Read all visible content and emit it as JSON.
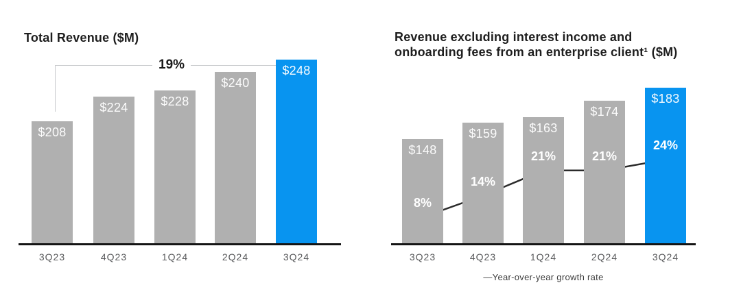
{
  "chart_data": [
    {
      "type": "bar",
      "title": "Total Revenue ($M)",
      "categories": [
        "3Q23",
        "4Q23",
        "1Q24",
        "2Q24",
        "3Q24"
      ],
      "values": [
        208,
        224,
        228,
        240,
        248
      ],
      "data_labels": [
        "$208",
        "$224",
        "$228",
        "$240",
        "$248"
      ],
      "highlight_index": 4,
      "xlabel": "",
      "ylabel": "",
      "ylim": [
        129,
        248
      ],
      "grid": false,
      "legend_position": "none",
      "annotation": {
        "label": "19%",
        "from": "3Q23",
        "to": "3Q24"
      }
    },
    {
      "type": "bar",
      "title": "Revenue excluding interest income and onboarding fees from an enterprise client¹ ($M)",
      "title_lines": [
        "Revenue excluding interest income and",
        "onboarding fees from an enterprise client¹ ($M)"
      ],
      "categories": [
        "3Q23",
        "4Q23",
        "1Q24",
        "2Q24",
        "3Q24"
      ],
      "series": [
        {
          "name": "Revenue",
          "type": "bar",
          "values": [
            148,
            159,
            163,
            174,
            183
          ],
          "data_labels": [
            "$148",
            "$159",
            "$163",
            "$174",
            "$183"
          ],
          "highlight_index": 4
        },
        {
          "name": "Year-over-year growth rate",
          "type": "line",
          "values": [
            8,
            14,
            21,
            21,
            24
          ],
          "data_labels": [
            "8%",
            "14%",
            "21%",
            "21%",
            "24%"
          ]
        }
      ],
      "xlabel": "",
      "ylabel": "",
      "ylim": [
        77,
        183
      ],
      "grid": false,
      "legend": {
        "label": "—Year-over-year growth rate",
        "position": "bottom"
      }
    }
  ],
  "colors": {
    "bar_gray": "#b0b0b0",
    "bar_blue": "#0894f0",
    "axis_black": "#141414",
    "growth_line": "#2b2b2b",
    "bar_label_white": "#ffffff",
    "tick_gray": "#58595b",
    "bracket_gray": "#c9cbcd",
    "title_black": "#1e1e1e",
    "annotation_black": "#1a1a1a",
    "legend_gray": "#3c3c3c"
  }
}
